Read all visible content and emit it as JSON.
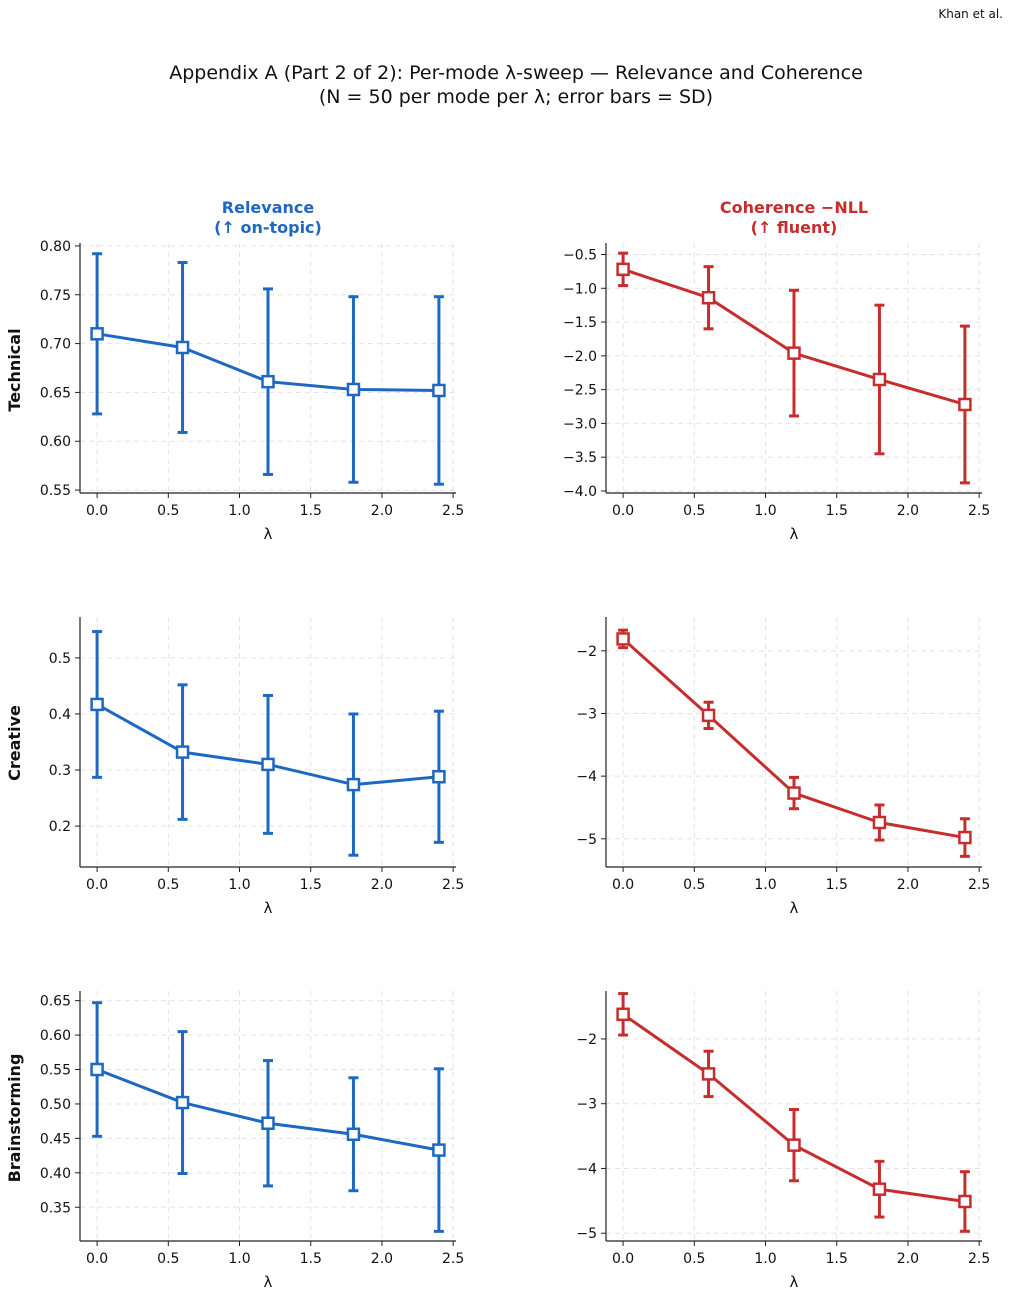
{
  "header": {
    "author": "Khan et al.",
    "title_line1": "Appendix A (Part 2 of 2): Per-mode λ-sweep — Relevance and Coherence",
    "title_line2": "(N = 50 per mode per λ; error bars = SD)"
  },
  "columns": [
    {
      "title_line1": "Relevance",
      "title_line2": "(↑ on-topic)",
      "color": "#1f68c1"
    },
    {
      "title_line1": "Coherence −NLL",
      "title_line2": "(↑ fluent)",
      "color": "#c62d2d"
    }
  ],
  "rows": [
    {
      "label": "Technical"
    },
    {
      "label": "Creative"
    },
    {
      "label": "Brainstorming"
    }
  ],
  "chart_data": [
    {
      "type": "line",
      "row": "Technical",
      "metric": "Relevance",
      "xlabel": "λ",
      "x": [
        0.0,
        0.6,
        1.2,
        1.8,
        2.4
      ],
      "y": [
        0.71,
        0.696,
        0.661,
        0.653,
        0.652
      ],
      "sd": [
        0.082,
        0.087,
        0.095,
        0.095,
        0.096
      ],
      "xlim": [
        -0.12,
        2.52
      ],
      "ylim": [
        0.547,
        0.803
      ],
      "xticks": [
        0.0,
        0.5,
        1.0,
        1.5,
        2.0,
        2.5
      ],
      "xtick_labels": [
        "0.0",
        "0.5",
        "1.0",
        "1.5",
        "2.0",
        "2.5"
      ],
      "yticks": [
        0.55,
        0.6,
        0.65,
        0.7,
        0.75,
        0.8
      ],
      "ytick_labels": [
        "0.55",
        "0.60",
        "0.65",
        "0.70",
        "0.75",
        "0.80"
      ],
      "grid": true
    },
    {
      "type": "line",
      "row": "Technical",
      "metric": "Coherence −NLL",
      "xlabel": "λ",
      "x": [
        0.0,
        0.6,
        1.2,
        1.8,
        2.4
      ],
      "y": [
        -0.72,
        -1.14,
        -1.96,
        -2.35,
        -2.72
      ],
      "sd": [
        0.24,
        0.46,
        0.93,
        1.1,
        1.16
      ],
      "xlim": [
        -0.12,
        2.52
      ],
      "ylim": [
        -4.03,
        -0.33
      ],
      "xticks": [
        0.0,
        0.5,
        1.0,
        1.5,
        2.0,
        2.5
      ],
      "xtick_labels": [
        "0.0",
        "0.5",
        "1.0",
        "1.5",
        "2.0",
        "2.5"
      ],
      "yticks": [
        -0.5,
        -1.0,
        -1.5,
        -2.0,
        -2.5,
        -3.0,
        -3.5,
        -4.0
      ],
      "ytick_labels": [
        "−0.5",
        "−1.0",
        "−1.5",
        "−2.0",
        "−2.5",
        "−3.0",
        "−3.5",
        "−4.0"
      ],
      "grid": true
    },
    {
      "type": "line",
      "row": "Creative",
      "metric": "Relevance",
      "xlabel": "λ",
      "x": [
        0.0,
        0.6,
        1.2,
        1.8,
        2.4
      ],
      "y": [
        0.417,
        0.332,
        0.31,
        0.274,
        0.288
      ],
      "sd": [
        0.13,
        0.12,
        0.123,
        0.126,
        0.117
      ],
      "xlim": [
        -0.12,
        2.52
      ],
      "ylim": [
        0.127,
        0.573
      ],
      "xticks": [
        0.0,
        0.5,
        1.0,
        1.5,
        2.0,
        2.5
      ],
      "xtick_labels": [
        "0.0",
        "0.5",
        "1.0",
        "1.5",
        "2.0",
        "2.5"
      ],
      "yticks": [
        0.2,
        0.3,
        0.4,
        0.5
      ],
      "ytick_labels": [
        "0.2",
        "0.3",
        "0.4",
        "0.5"
      ],
      "grid": true
    },
    {
      "type": "line",
      "row": "Creative",
      "metric": "Coherence −NLL",
      "xlabel": "λ",
      "x": [
        0.0,
        0.6,
        1.2,
        1.8,
        2.4
      ],
      "y": [
        -1.81,
        -3.03,
        -4.27,
        -4.74,
        -4.98
      ],
      "sd": [
        0.14,
        0.21,
        0.25,
        0.28,
        0.3
      ],
      "xlim": [
        -0.12,
        2.52
      ],
      "ylim": [
        -5.45,
        -1.46
      ],
      "xticks": [
        0.0,
        0.5,
        1.0,
        1.5,
        2.0,
        2.5
      ],
      "xtick_labels": [
        "0.0",
        "0.5",
        "1.0",
        "1.5",
        "2.0",
        "2.5"
      ],
      "yticks": [
        -2,
        -3,
        -4,
        -5
      ],
      "ytick_labels": [
        "−2",
        "−3",
        "−4",
        "−5"
      ],
      "grid": true
    },
    {
      "type": "line",
      "row": "Brainstorming",
      "metric": "Relevance",
      "xlabel": "λ",
      "x": [
        0.0,
        0.6,
        1.2,
        1.8,
        2.4
      ],
      "y": [
        0.55,
        0.502,
        0.472,
        0.456,
        0.433
      ],
      "sd": [
        0.097,
        0.103,
        0.091,
        0.082,
        0.118
      ],
      "xlim": [
        -0.12,
        2.52
      ],
      "ylim": [
        0.301,
        0.664
      ],
      "xticks": [
        0.0,
        0.5,
        1.0,
        1.5,
        2.0,
        2.5
      ],
      "xtick_labels": [
        "0.0",
        "0.5",
        "1.0",
        "1.5",
        "2.0",
        "2.5"
      ],
      "yticks": [
        0.35,
        0.4,
        0.45,
        0.5,
        0.55,
        0.6,
        0.65
      ],
      "ytick_labels": [
        "0.35",
        "0.40",
        "0.45",
        "0.50",
        "0.55",
        "0.60",
        "0.65"
      ],
      "grid": true
    },
    {
      "type": "line",
      "row": "Brainstorming",
      "metric": "Coherence −NLL",
      "xlabel": "λ",
      "x": [
        0.0,
        0.6,
        1.2,
        1.8,
        2.4
      ],
      "y": [
        -1.62,
        -2.54,
        -3.64,
        -4.32,
        -4.51
      ],
      "sd": [
        0.32,
        0.35,
        0.55,
        0.43,
        0.46
      ],
      "xlim": [
        -0.12,
        2.52
      ],
      "ylim": [
        -5.12,
        -1.26
      ],
      "xticks": [
        0.0,
        0.5,
        1.0,
        1.5,
        2.0,
        2.5
      ],
      "xtick_labels": [
        "0.0",
        "0.5",
        "1.0",
        "1.5",
        "2.0",
        "2.5"
      ],
      "yticks": [
        -2,
        -3,
        -4,
        -5
      ],
      "ytick_labels": [
        "−2",
        "−3",
        "−4",
        "−5"
      ],
      "grid": true
    }
  ]
}
